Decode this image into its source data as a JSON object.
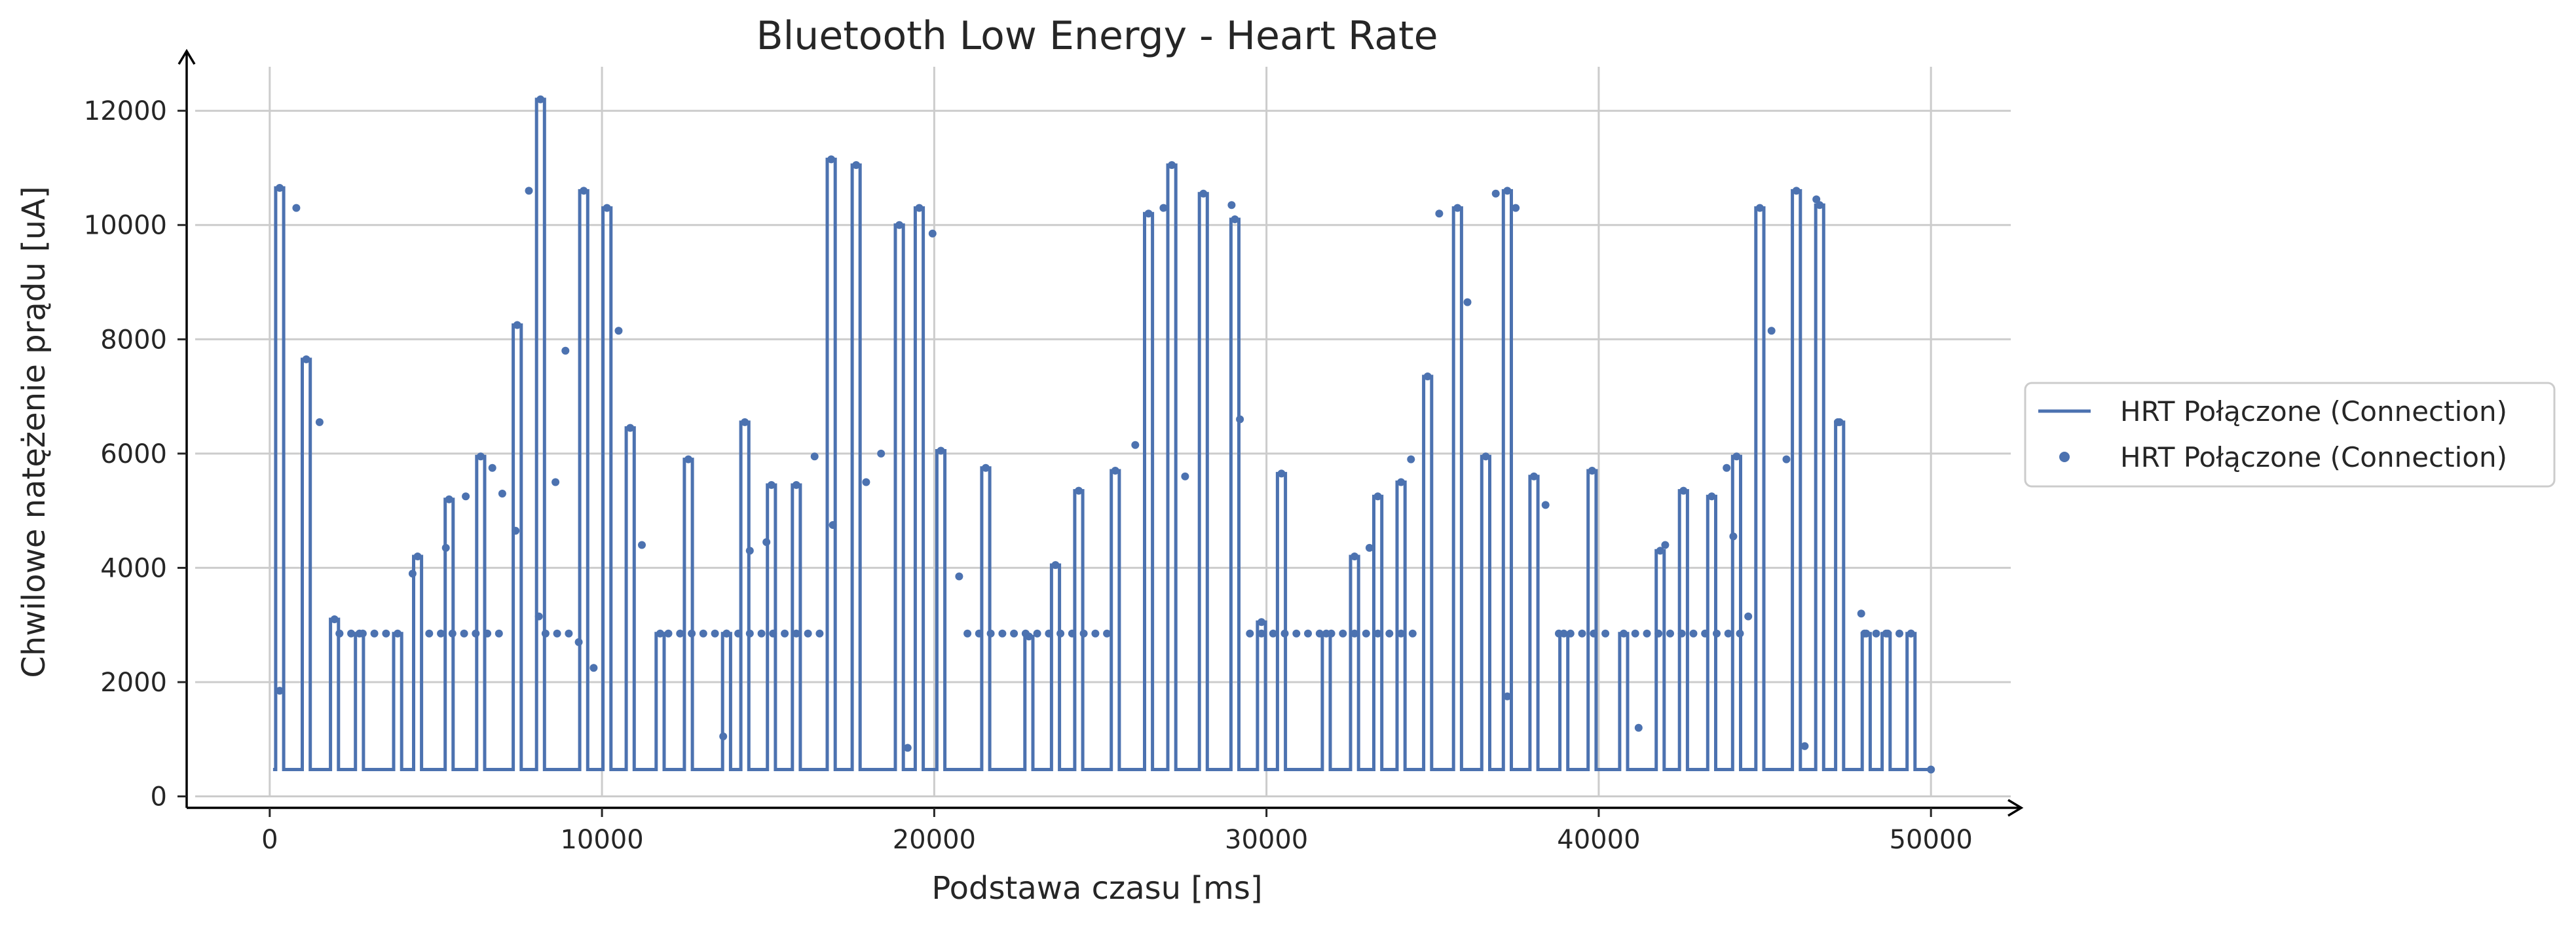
{
  "chart_data": {
    "type": "line",
    "title": "Bluetooth Low Energy - Heart Rate",
    "xlabel": "Podstawa czasu [ms]",
    "ylabel": "Chwilowe natężenie prądu [uA]",
    "xlim": [
      -2500,
      52500
    ],
    "ylim": [
      -200,
      12850
    ],
    "xticks": [
      0,
      10000,
      20000,
      30000,
      40000,
      50000
    ],
    "yticks": [
      0,
      2000,
      4000,
      6000,
      8000,
      10000,
      12000
    ],
    "grid": true,
    "legend_placement": "outside-right",
    "color": "#4c72b0",
    "series": [
      {
        "name": "HRT Połączone (Connection)",
        "kind": "line",
        "pulses": [
          [
            300,
            10650
          ],
          [
            1100,
            7650
          ],
          [
            1950,
            3100
          ],
          [
            2700,
            2850
          ],
          [
            3850,
            2850
          ],
          [
            4450,
            4200
          ],
          [
            5400,
            5200
          ],
          [
            6350,
            5950
          ],
          [
            7450,
            8250
          ],
          [
            8150,
            12200
          ],
          [
            9450,
            10600
          ],
          [
            10150,
            10300
          ],
          [
            10850,
            6450
          ],
          [
            11750,
            2850
          ],
          [
            12600,
            5900
          ],
          [
            13750,
            2850
          ],
          [
            14300,
            6550
          ],
          [
            15100,
            5450
          ],
          [
            15850,
            5450
          ],
          [
            16900,
            11150
          ],
          [
            17650,
            11050
          ],
          [
            18950,
            10000
          ],
          [
            19550,
            10300
          ],
          [
            20200,
            6050
          ],
          [
            21550,
            5750
          ],
          [
            22850,
            2800
          ],
          [
            23650,
            4050
          ],
          [
            24350,
            5350
          ],
          [
            25450,
            5700
          ],
          [
            26450,
            10200
          ],
          [
            27150,
            11050
          ],
          [
            28100,
            10550
          ],
          [
            29050,
            10100
          ],
          [
            29850,
            3050
          ],
          [
            30450,
            5650
          ],
          [
            31800,
            2850
          ],
          [
            32650,
            4200
          ],
          [
            33350,
            5250
          ],
          [
            34050,
            5500
          ],
          [
            34850,
            7350
          ],
          [
            35750,
            10300
          ],
          [
            36600,
            5950
          ],
          [
            37250,
            10600
          ],
          [
            38050,
            5600
          ],
          [
            38950,
            2850
          ],
          [
            39800,
            5700
          ],
          [
            40750,
            2850
          ],
          [
            41850,
            4300
          ],
          [
            42550,
            5350
          ],
          [
            43400,
            5250
          ],
          [
            44150,
            5950
          ],
          [
            44850,
            10300
          ],
          [
            45950,
            10600
          ],
          [
            46650,
            10350
          ],
          [
            47250,
            6550
          ],
          [
            48050,
            2850
          ],
          [
            48650,
            2850
          ],
          [
            49400,
            2850
          ]
        ],
        "baseline": 470
      },
      {
        "name": "HRT Połączone (Connection)",
        "kind": "scatter",
        "x": [
          300,
          800,
          1500,
          2100,
          4300,
          5300,
          5900,
          6700,
          7000,
          7400,
          7800,
          8100,
          8600,
          8900,
          9300,
          9750,
          10500,
          11200,
          13650,
          14450,
          14950,
          16400,
          16950,
          17950,
          18400,
          19200,
          19950,
          20750,
          26050,
          26900,
          27550,
          28950,
          29200,
          33100,
          34350,
          35200,
          36050,
          36900,
          37250,
          37500,
          38400,
          41200,
          42000,
          43850,
          44050,
          44500,
          45200,
          45650,
          46200,
          46550,
          47200,
          47900,
          50000
        ],
        "y": [
          1850,
          10300,
          6550,
          2850,
          3900,
          4350,
          5250,
          5750,
          5300,
          4650,
          10600,
          3150,
          5500,
          7800,
          2700,
          2250,
          8150,
          4400,
          1050,
          4300,
          4450,
          5950,
          4750,
          5500,
          6000,
          850,
          9850,
          3850,
          6150,
          10300,
          5600,
          10350,
          6600,
          4350,
          5900,
          10200,
          8650,
          10550,
          1750,
          10300,
          5100,
          1200,
          4400,
          5750,
          4550,
          3150,
          8150,
          5900,
          880,
          10450,
          6550,
          3200,
          470
        ]
      },
      {
        "name": "baseline-dots",
        "kind": "scatter-baseline",
        "y": 2850,
        "segments": [
          [
            2100,
            3800
          ],
          [
            4800,
            7200
          ],
          [
            8300,
            9100
          ],
          [
            12000,
            16700
          ],
          [
            21000,
            25300
          ],
          [
            29500,
            34700
          ],
          [
            38800,
            40400
          ],
          [
            41100,
            44300
          ],
          [
            48000,
            49700
          ]
        ],
        "step": 350
      }
    ]
  }
}
